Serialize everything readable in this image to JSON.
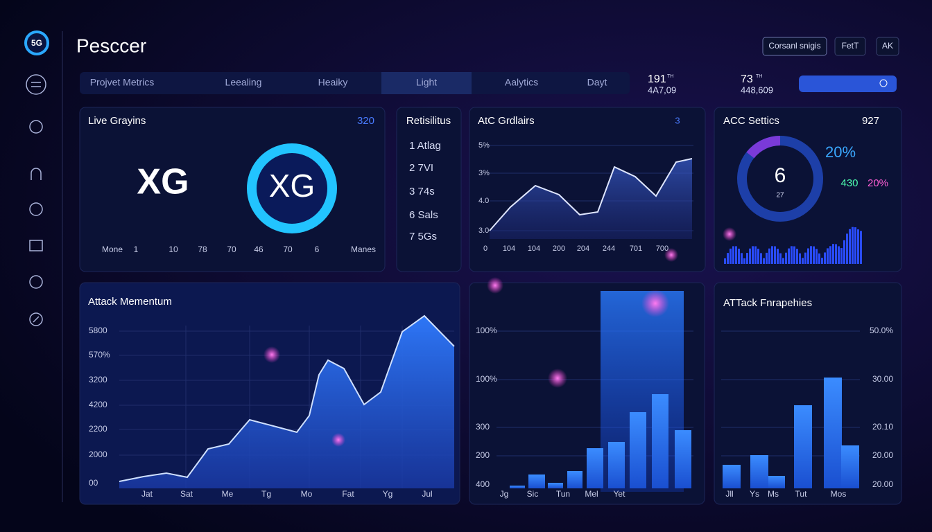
{
  "sidebar": {
    "logo": "5G"
  },
  "header": {
    "title": "Pesccer",
    "buttons": [
      "Corsanl snigis",
      "FetT",
      "AK"
    ]
  },
  "nav": {
    "items": [
      "Projvet Metrics",
      "Leealing",
      "Heaiky",
      "Light",
      "Aalytics",
      "Dayt"
    ],
    "stat1": {
      "value": "191",
      "sup": "TH",
      "sub": "4A7,09"
    },
    "stat2": {
      "value": "73",
      "sup": "TH",
      "sub": "448,609"
    }
  },
  "live": {
    "title": "Live Grayins",
    "count": "320",
    "left": "XG",
    "right": "XG",
    "scale": [
      "Mone",
      "1",
      "10",
      "78",
      "70",
      "46",
      "70",
      "6",
      "Manes"
    ]
  },
  "results": {
    "title": "Retisilitus",
    "items": [
      "1  Atlag",
      "2  7VI",
      "3  74s",
      "6  Sals",
      "7  5Gs"
    ]
  },
  "grid_chart": {
    "title": "AtC Grdlairs",
    "badge": "3",
    "yticks": [
      "5%",
      "3%",
      "4.0",
      "3.0"
    ],
    "xticks": [
      "0",
      "104",
      "104",
      "200",
      "204",
      "244",
      "701",
      "700"
    ]
  },
  "settings": {
    "title": "ACC Settics",
    "count": "927",
    "center": "6",
    "center_sub": "27",
    "pct": "20%",
    "stat_a": "430",
    "stat_b": "20%"
  },
  "momentum": {
    "title": "Attack Mementum",
    "yticks": [
      "5800",
      "570%",
      "3200",
      "4200",
      "2200",
      "2000",
      "00"
    ],
    "xticks": [
      "Jat",
      "Sat",
      "Me",
      "Tg",
      "Mo",
      "Fat",
      "Yg",
      "Jul"
    ]
  },
  "middle": {
    "yticks": [
      "100%",
      "100%",
      "300",
      "200",
      "400"
    ],
    "xticks": [
      "Jg",
      "Sic",
      "Tun",
      "Mel",
      "Yet"
    ]
  },
  "props": {
    "title": "ATTack Fnrapehies",
    "yticks": [
      "50.0%",
      "30.00",
      "20.10",
      "20.00",
      "20.00"
    ],
    "xticks": [
      "Jll",
      "Ys",
      "Ms",
      "Tut",
      "Mos"
    ]
  }
}
